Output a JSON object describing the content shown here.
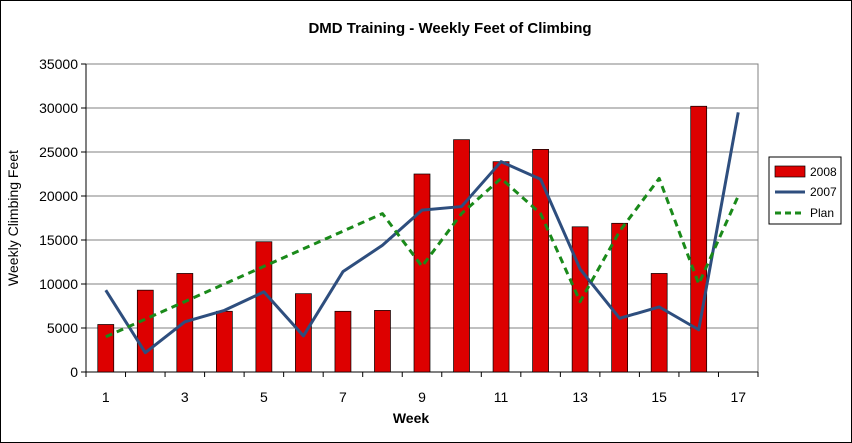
{
  "chart_data": {
    "type": "bar",
    "title": "DMD Training - Weekly Feet of Climbing",
    "xlabel": "Week",
    "ylabel": "Weekly Climbing Feet",
    "x": [
      1,
      2,
      3,
      4,
      5,
      6,
      7,
      8,
      9,
      10,
      11,
      12,
      13,
      14,
      15,
      16,
      17
    ],
    "x_tick_labels": [
      "1",
      "3",
      "5",
      "7",
      "9",
      "11",
      "13",
      "15",
      "17"
    ],
    "ylim": [
      0,
      35000
    ],
    "y_ticks": [
      0,
      5000,
      10000,
      15000,
      20000,
      25000,
      30000,
      35000
    ],
    "y_tick_labels": [
      "0",
      "5000",
      "10000",
      "15000",
      "20000",
      "25000",
      "30000",
      "35000"
    ],
    "grid": "horizontal",
    "legend_position": "right",
    "series": [
      {
        "name": "2008",
        "type": "bar",
        "color": "#dd0000",
        "values": [
          5400,
          9300,
          11200,
          6900,
          14800,
          8900,
          6900,
          7000,
          22500,
          26400,
          23900,
          25300,
          16500,
          16900,
          11200,
          30200,
          null
        ]
      },
      {
        "name": "2007",
        "type": "line",
        "color": "#2e4e7e",
        "dash": "solid",
        "values": [
          9300,
          2200,
          5700,
          7000,
          9100,
          4100,
          11400,
          14400,
          18400,
          18800,
          23900,
          21900,
          11700,
          6100,
          7400,
          4800,
          29500
        ]
      },
      {
        "name": "Plan",
        "type": "line",
        "color": "#1a8a1a",
        "dash": "dashed",
        "values": [
          4000,
          6000,
          8000,
          10000,
          12000,
          14000,
          16000,
          18000,
          12000,
          18000,
          22000,
          18000,
          8000,
          16000,
          22000,
          10000,
          20000
        ]
      }
    ]
  }
}
